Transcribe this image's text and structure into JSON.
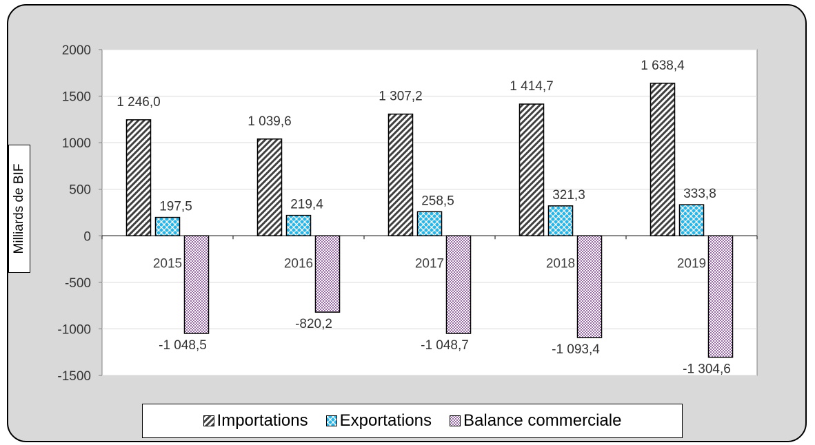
{
  "chart_data": {
    "type": "bar",
    "ylabel": "Milliards de BIF",
    "ylim": [
      -1500,
      2000
    ],
    "yticks": [
      "2000",
      "1500",
      "1000",
      "500",
      "0",
      "-500",
      "-1000",
      "-1500"
    ],
    "categories": [
      "2015",
      "2016",
      "2017",
      "2018",
      "2019"
    ],
    "series": [
      {
        "name": "Importations",
        "values": [
          1246.0,
          1039.6,
          1307.2,
          1414.7,
          1638.4
        ],
        "labels": [
          "1 246,0",
          "1 039,6",
          "1 307,2",
          "1 414,7",
          "1 638,4"
        ],
        "color": "#404040"
      },
      {
        "name": "Exportations",
        "values": [
          197.5,
          219.4,
          258.5,
          321.3,
          333.8
        ],
        "labels": [
          "197,5",
          "219,4",
          "258,5",
          "321,3",
          "333,8"
        ],
        "color": "#29b6e8"
      },
      {
        "name": "Balance commerciale",
        "values": [
          -1048.5,
          -820.2,
          -1048.7,
          -1093.4,
          -1304.6
        ],
        "labels": [
          "-1 048,5",
          "-820,2",
          "-1 048,7",
          "-1 093,4",
          "-1 304,6"
        ],
        "color": "#9b6aa8"
      }
    ],
    "grid": true,
    "legend_position": "bottom"
  }
}
